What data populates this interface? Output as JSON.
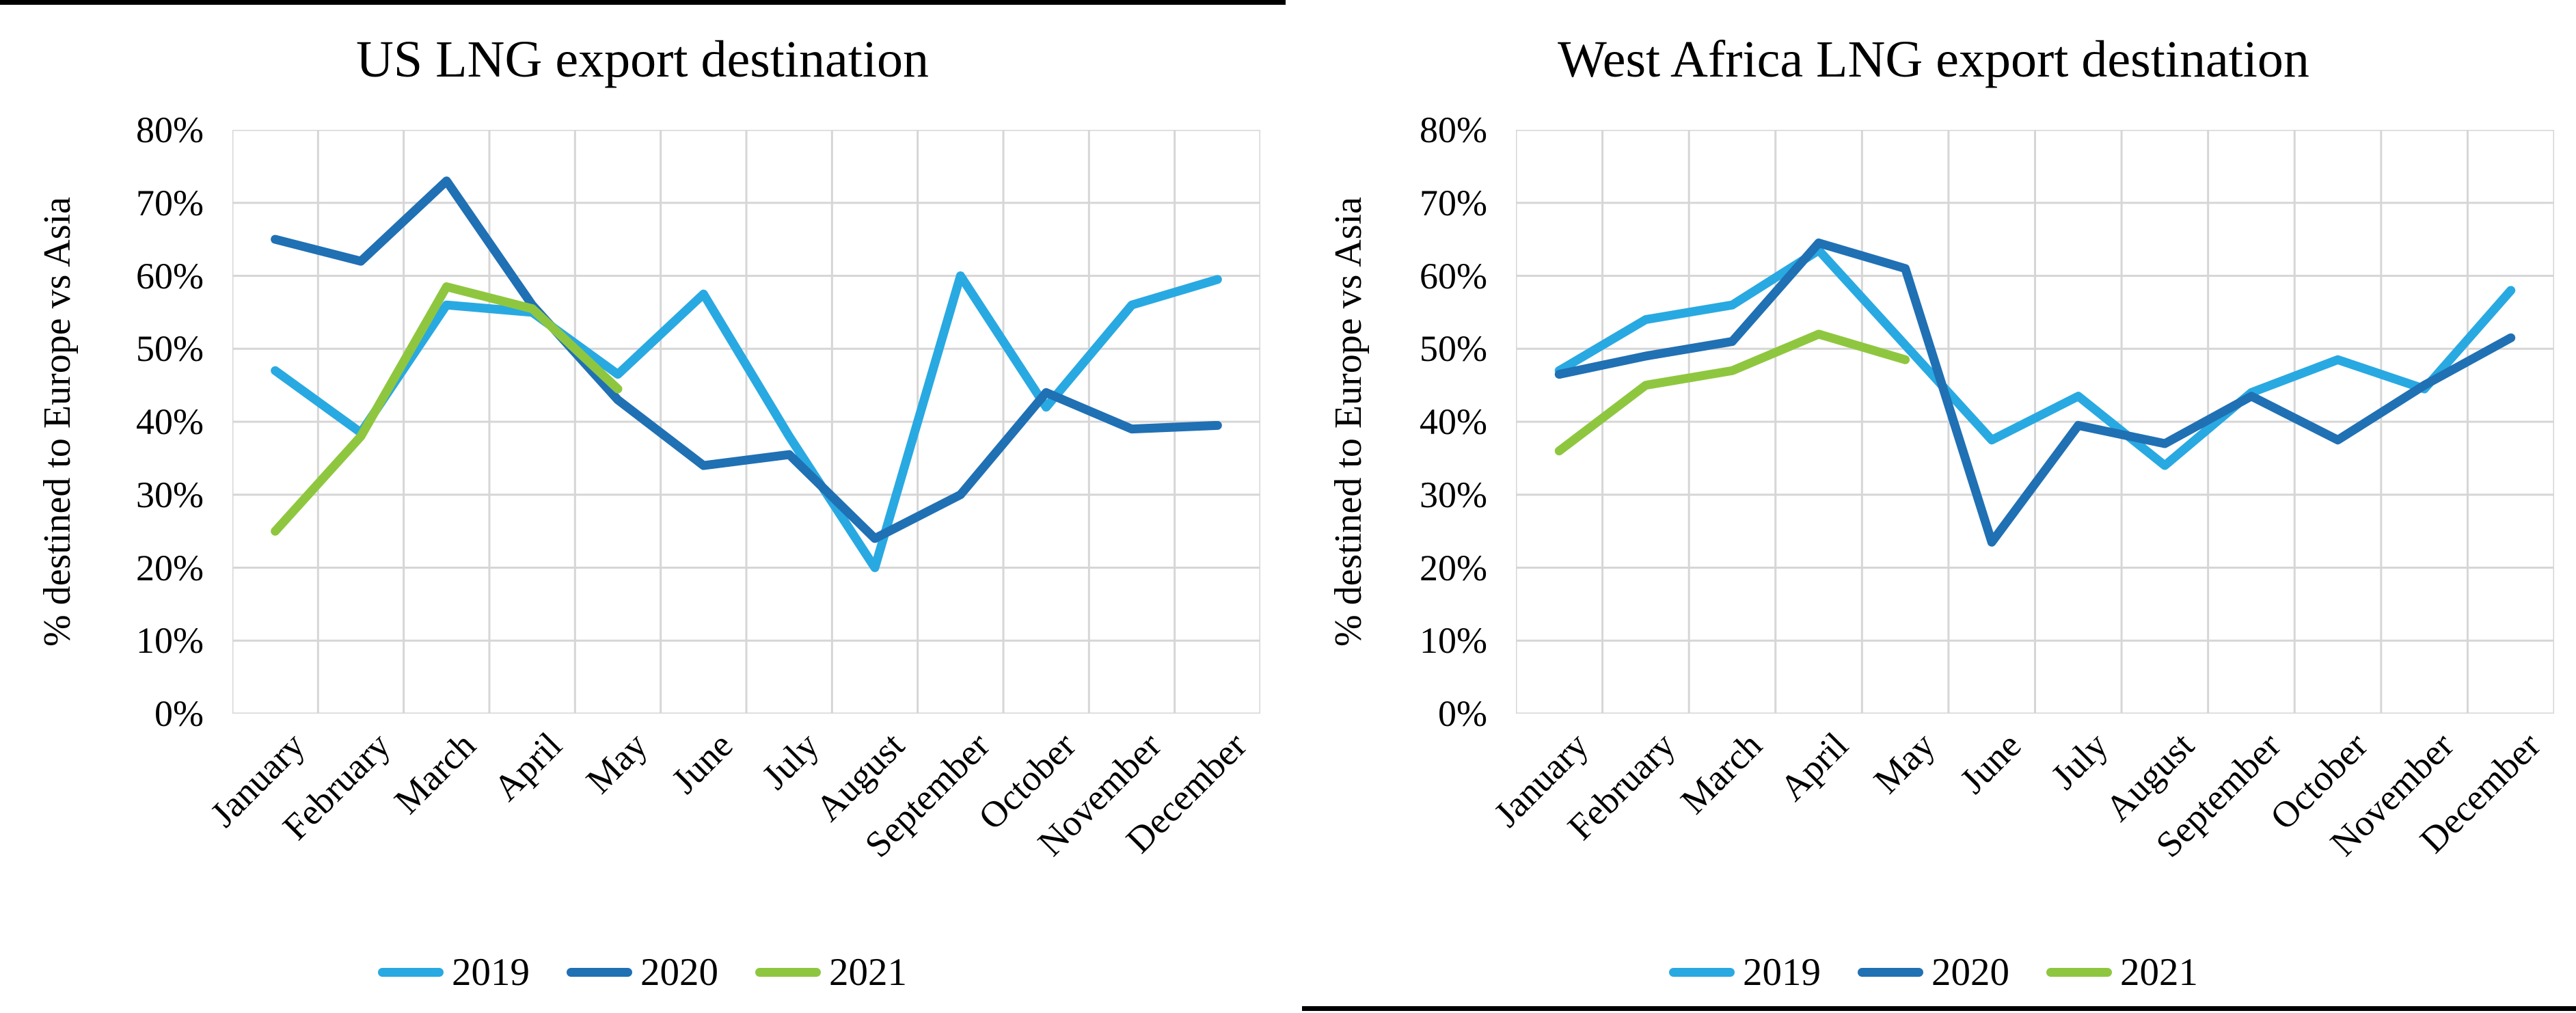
{
  "chart_data": [
    {
      "type": "line",
      "title": "US LNG export destination",
      "ylabel": "% destined to Europe vs Asia",
      "xlabel": "",
      "categories": [
        "January",
        "February",
        "March",
        "April",
        "May",
        "June",
        "July",
        "August",
        "September",
        "October",
        "November",
        "December"
      ],
      "y_ticks": [
        "80%",
        "70%",
        "60%",
        "50%",
        "40%",
        "30%",
        "20%",
        "10%",
        "0%"
      ],
      "ylim": [
        0,
        80
      ],
      "grid": true,
      "legend_position": "bottom",
      "series": [
        {
          "name": "2019",
          "color": "#29A9E1",
          "values": [
            47,
            38.5,
            56,
            55,
            46.5,
            57.5,
            38,
            20,
            60,
            42,
            56,
            59.5
          ]
        },
        {
          "name": "2020",
          "color": "#2070B4",
          "values": [
            65,
            62,
            73,
            56,
            43,
            34,
            35.5,
            24,
            30,
            44,
            39,
            39.5
          ]
        },
        {
          "name": "2021",
          "color": "#8EC73F",
          "values": [
            25,
            38,
            58.5,
            55.5,
            44.5
          ]
        }
      ]
    },
    {
      "type": "line",
      "title": "West Africa LNG export destination",
      "ylabel": "% destined to Europe vs Asia",
      "xlabel": "",
      "categories": [
        "January",
        "February",
        "March",
        "April",
        "May",
        "June",
        "July",
        "August",
        "September",
        "October",
        "November",
        "December"
      ],
      "y_ticks": [
        "80%",
        "70%",
        "60%",
        "50%",
        "40%",
        "30%",
        "20%",
        "10%",
        "0%"
      ],
      "ylim": [
        0,
        80
      ],
      "grid": true,
      "legend_position": "bottom",
      "series": [
        {
          "name": "2019",
          "color": "#29A9E1",
          "values": [
            47,
            54,
            56,
            63.5,
            50.5,
            37.5,
            43.5,
            34,
            44,
            48.5,
            44.5,
            58
          ]
        },
        {
          "name": "2020",
          "color": "#2070B4",
          "values": [
            46.5,
            49,
            51,
            64.5,
            61,
            23.5,
            39.5,
            37,
            43.5,
            37.5,
            45,
            51.5
          ]
        },
        {
          "name": "2021",
          "color": "#8EC73F",
          "values": [
            36,
            45,
            47,
            52,
            48.5
          ]
        }
      ]
    }
  ],
  "style": {
    "gridline_color": "#D6D6D6",
    "text_color": "#000000"
  }
}
